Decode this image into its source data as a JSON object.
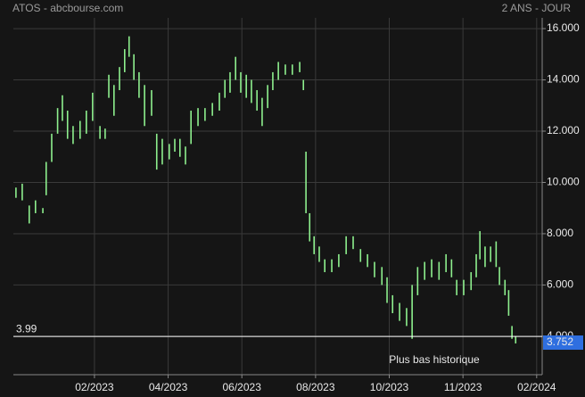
{
  "chart_data": {
    "type": "ohlc",
    "title": "ATOS - abcbourse.com",
    "subtitle": "2 ANS - JOUR",
    "color": "#8ef08e",
    "x": [
      -0.13,
      0.04,
      0.23,
      0.4,
      0.6,
      0.69,
      0.84,
      1.0,
      1.13,
      1.27,
      1.42,
      1.61,
      1.78,
      1.95,
      2.15,
      2.29,
      2.39,
      2.53,
      2.68,
      2.82,
      2.94,
      3.07,
      3.21,
      3.36,
      3.55,
      3.69,
      3.84,
      4.03,
      4.18,
      4.32,
      4.47,
      4.62,
      4.81,
      5.0,
      5.2,
      5.39,
      5.54,
      5.68,
      5.83,
      5.97,
      6.12,
      6.26,
      6.41,
      6.55,
      6.7,
      6.84,
      6.99,
      7.18,
      7.37,
      7.57,
      7.67,
      7.74,
      7.84,
      7.96,
      8.1,
      8.25,
      8.44,
      8.63,
      8.83,
      9.02,
      9.22,
      9.41,
      9.6,
      9.8,
      9.94,
      10.09,
      10.28,
      10.47,
      10.62,
      10.77,
      10.96,
      11.15,
      11.35,
      11.54,
      11.69,
      11.83,
      12.02,
      12.22,
      12.36,
      12.46,
      12.6,
      12.75,
      12.9,
      12.99,
      13.14,
      13.24,
      13.33,
      13.43
    ],
    "high": [
      9.8,
      9.95,
      9.1,
      9.3,
      9.0,
      10.8,
      11.9,
      12.9,
      13.4,
      12.8,
      12.2,
      12.4,
      12.8,
      13.5,
      12.2,
      12.1,
      14.2,
      13.8,
      14.5,
      15.2,
      15.7,
      15.0,
      14.3,
      13.8,
      13.6,
      11.9,
      11.7,
      11.5,
      11.7,
      11.7,
      11.4,
      12.8,
      12.9,
      12.9,
      13.1,
      13.5,
      14.0,
      14.3,
      14.9,
      14.3,
      14.2,
      14.0,
      13.6,
      13.3,
      13.8,
      14.3,
      14.7,
      14.6,
      14.6,
      14.7,
      14.0,
      11.2,
      8.8,
      7.9,
      7.5,
      7.0,
      7.0,
      7.2,
      7.9,
      7.9,
      7.4,
      7.2,
      6.9,
      6.7,
      6.3,
      5.6,
      5.3,
      5.1,
      6.0,
      6.7,
      6.9,
      7.0,
      6.9,
      7.2,
      7.0,
      6.2,
      6.2,
      6.5,
      7.2,
      8.1,
      7.5,
      7.5,
      7.7,
      6.7,
      6.2,
      5.8,
      4.4,
      4.0
    ],
    "low": [
      9.4,
      9.3,
      8.4,
      8.8,
      8.8,
      9.5,
      10.8,
      11.9,
      12.4,
      11.7,
      11.5,
      11.7,
      11.9,
      12.4,
      11.7,
      11.7,
      13.3,
      12.6,
      13.6,
      14.3,
      14.9,
      14.0,
      13.3,
      12.2,
      12.6,
      10.5,
      10.7,
      10.9,
      11.2,
      11.0,
      10.7,
      11.5,
      12.2,
      12.4,
      12.6,
      12.8,
      13.3,
      13.5,
      14.0,
      13.5,
      13.3,
      13.1,
      12.8,
      12.2,
      12.9,
      13.6,
      14.0,
      14.2,
      14.2,
      14.3,
      13.6,
      8.8,
      7.7,
      7.2,
      6.9,
      6.5,
      6.5,
      6.7,
      7.2,
      7.4,
      6.9,
      6.7,
      6.3,
      6.0,
      5.3,
      4.9,
      4.6,
      4.4,
      3.9,
      5.6,
      6.2,
      6.3,
      6.2,
      6.5,
      6.3,
      5.6,
      5.6,
      5.8,
      6.3,
      7.0,
      6.7,
      6.9,
      6.7,
      6.0,
      5.6,
      4.8,
      3.9,
      3.72
    ],
    "xlim": [
      -0.2,
      14.15
    ],
    "xticks": [
      {
        "value": 2,
        "label": "02/2023"
      },
      {
        "value": 4,
        "label": "04/2023"
      },
      {
        "value": 6,
        "label": "06/2023"
      },
      {
        "value": 8,
        "label": "08/2023"
      },
      {
        "value": 10,
        "label": "10/2023"
      },
      {
        "value": 12,
        "label": "11/2023"
      },
      {
        "value": 14,
        "label": "02/2024"
      }
    ],
    "ylim": [
      2.5,
      16.42
    ],
    "yticks": [
      {
        "value": 4,
        "label": "4.000"
      },
      {
        "value": 6,
        "label": "6.000"
      },
      {
        "value": 8,
        "label": "8.000"
      },
      {
        "value": 10,
        "label": "10.000"
      },
      {
        "value": 12,
        "label": "12.000"
      },
      {
        "value": 14,
        "label": "14.000"
      },
      {
        "value": 16,
        "label": "16.000"
      }
    ],
    "grid": true,
    "support": 3.99,
    "last_value": 3.752,
    "annotation": "Plus bas historique"
  }
}
